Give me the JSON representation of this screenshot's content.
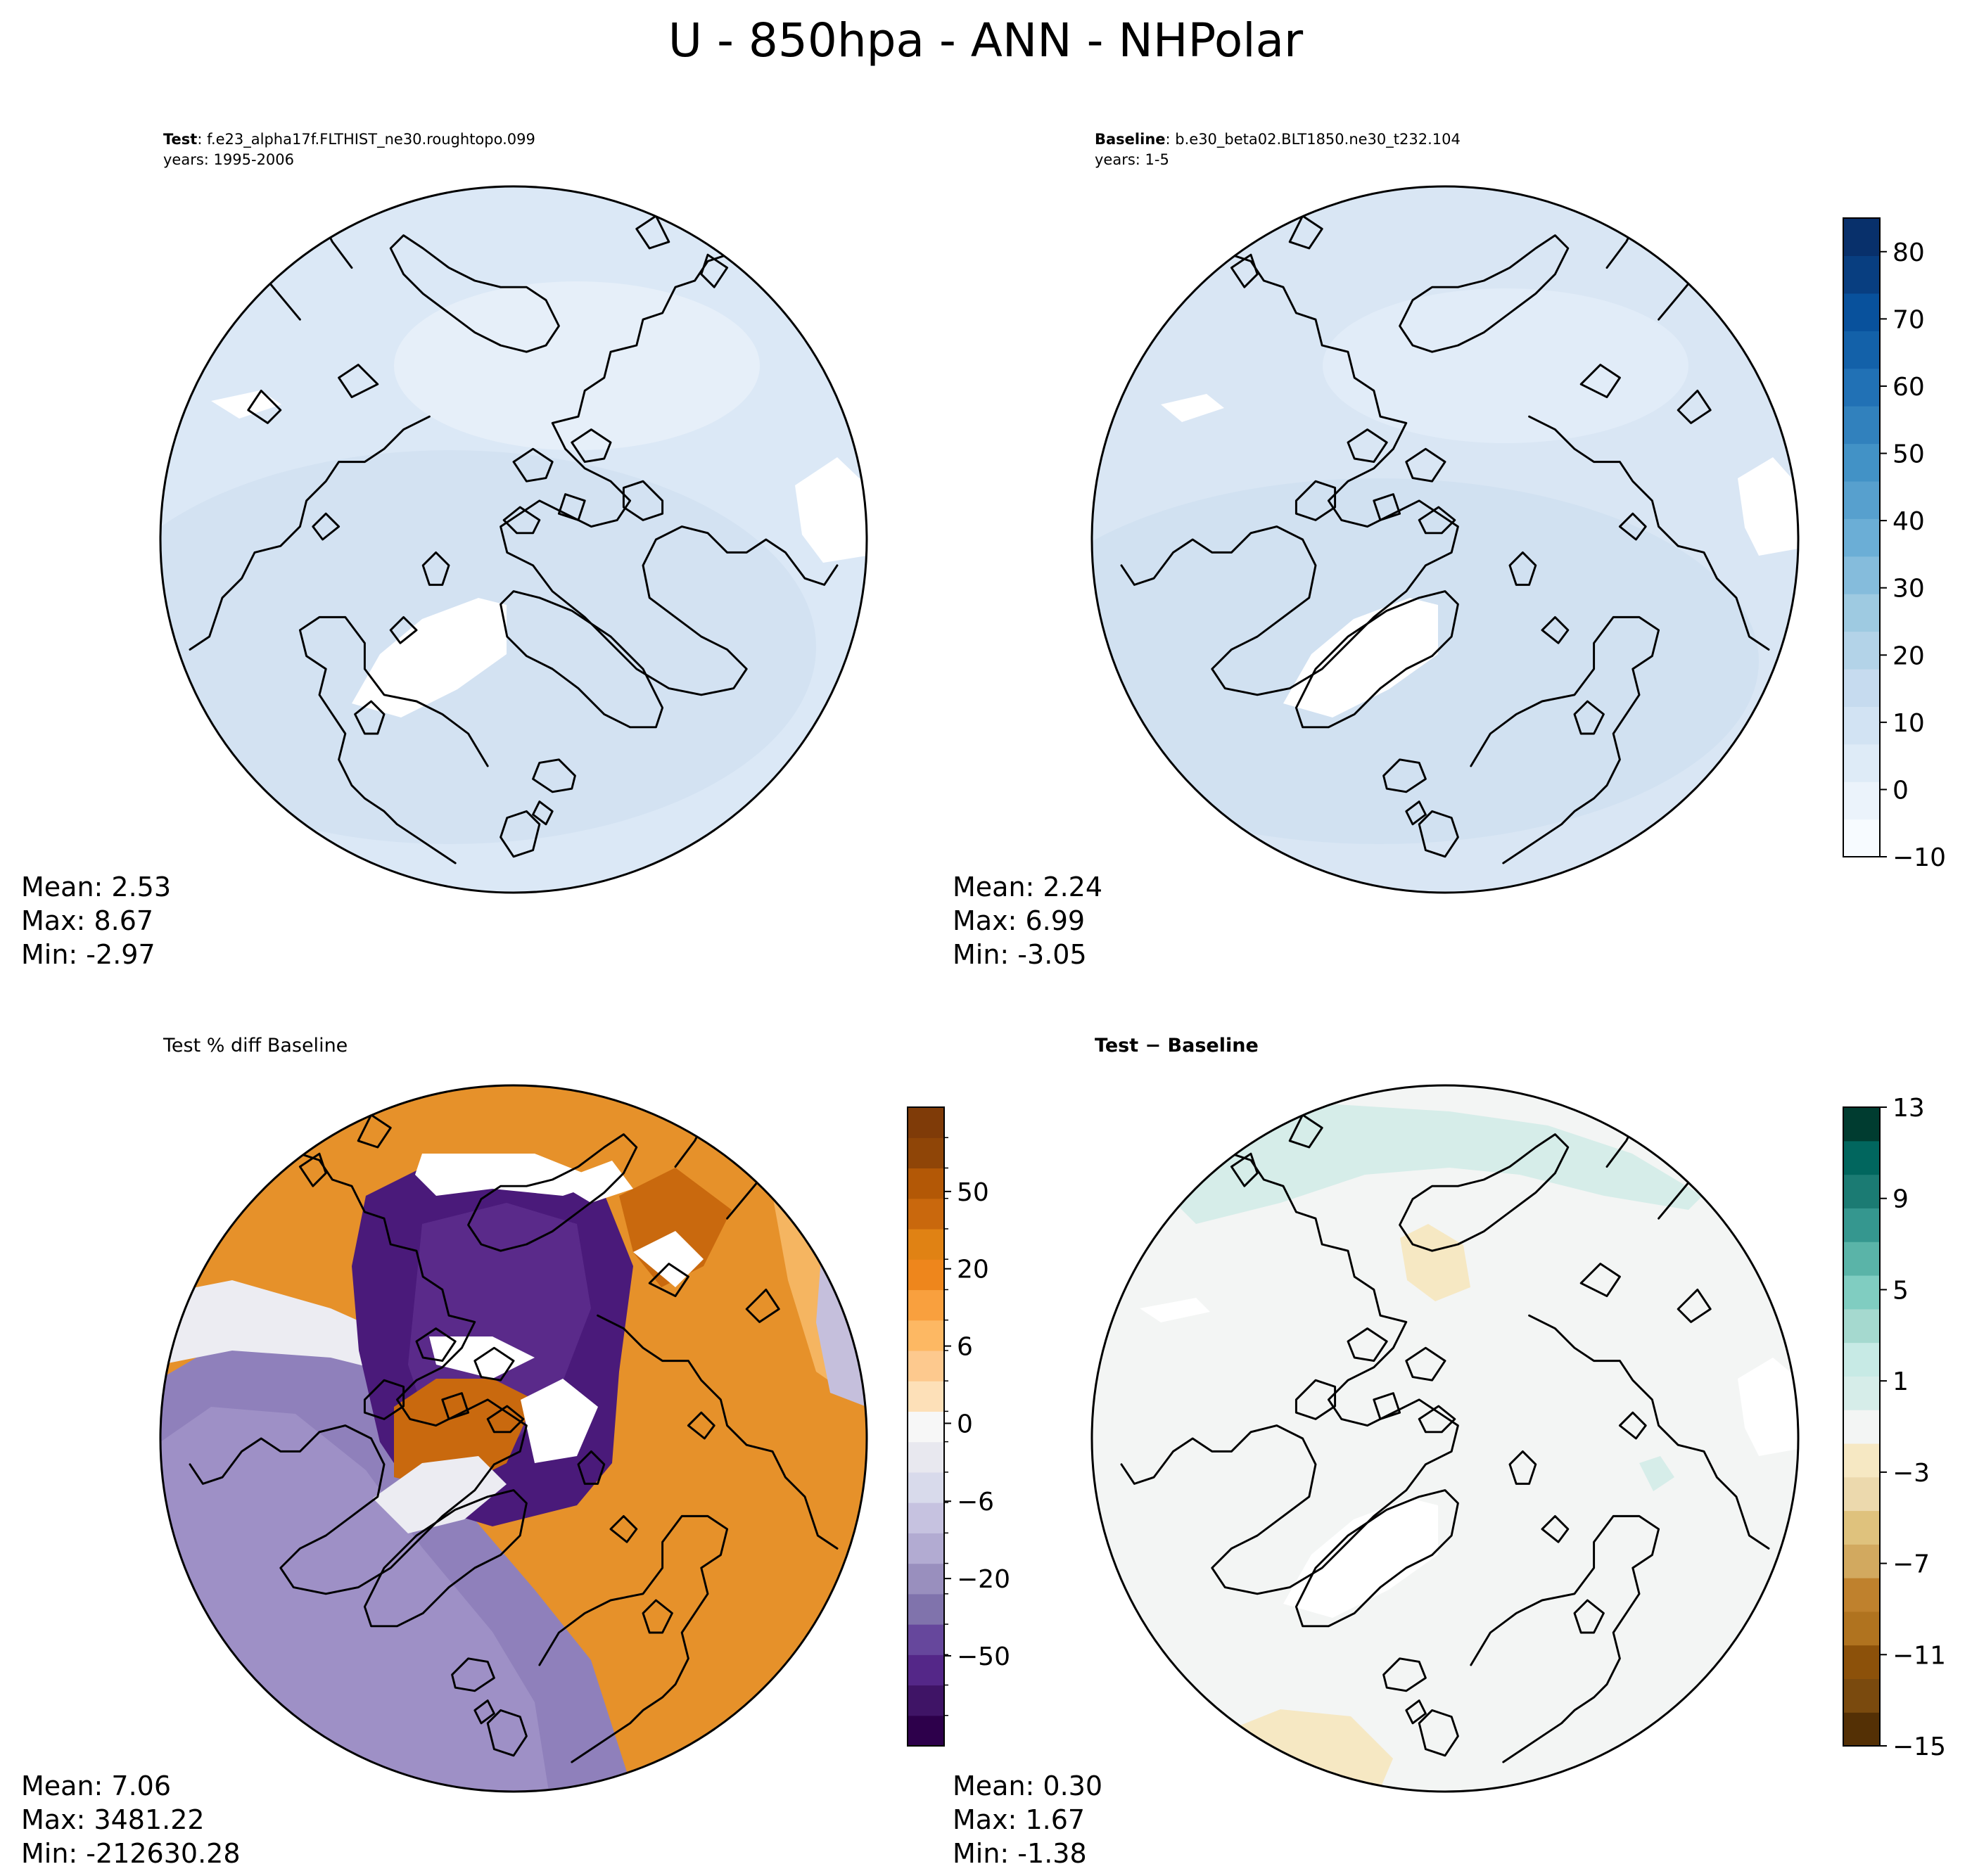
{
  "chart_data": [
    {
      "type": "heatmap",
      "figure_title": "U - 850hpa - ANN - NHPolar",
      "panel": "test",
      "title_bold": "Test",
      "title_rest": ": f.e23_alpha17f.FLTHIST_ne30.roughtopo.099",
      "years": "years: 1995-2006",
      "projection": "North polar stereographic",
      "stats": {
        "mean": "Mean:  2.53",
        "max": "Max:  8.67",
        "min": "Min: -2.97"
      },
      "colormap": "Blues",
      "colorbar_ticks": [
        "80",
        "70",
        "60",
        "50",
        "40",
        "30",
        "20",
        "10",
        "0",
        "−10"
      ],
      "colorbar_tick_values": [
        80,
        70,
        60,
        50,
        40,
        30,
        20,
        10,
        0,
        -10
      ],
      "colorbar_range": [
        -10,
        85
      ],
      "field_color": "#dbe8f6"
    },
    {
      "type": "heatmap",
      "panel": "baseline",
      "title_bold": "Baseline",
      "title_rest": ": b.e30_beta02.BLT1850.ne30_t232.104",
      "years": "years: 1-5",
      "projection": "North polar stereographic",
      "stats": {
        "mean": "Mean:  2.24",
        "max": "Max:  6.99",
        "min": "Min: -3.05"
      },
      "field_color": "#d9e6f4"
    },
    {
      "type": "heatmap",
      "panel": "pct_diff",
      "title": "Test % diff Baseline",
      "projection": "North polar stereographic",
      "stats": {
        "mean": "Mean:  7.06",
        "max": "Max: 3481.22",
        "min": "Min: -212630.28"
      },
      "colormap": "PuOr_r",
      "colorbar_ticks": [
        "50",
        "20",
        "6",
        "0",
        "−6",
        "−20",
        "−50"
      ],
      "colorbar_tick_values": [
        50,
        20,
        6,
        0,
        -6,
        -20,
        -50
      ]
    },
    {
      "type": "heatmap",
      "panel": "diff",
      "title": "Test − Baseline",
      "projection": "North polar stereographic",
      "stats": {
        "mean": "Mean:  0.30",
        "max": "Max:  1.67",
        "min": "Min: -1.38"
      },
      "colormap": "BrBG",
      "colorbar_ticks": [
        "13",
        "9",
        "5",
        "1",
        "−3",
        "−7",
        "−11",
        "−15"
      ],
      "colorbar_tick_values": [
        13,
        9,
        5,
        1,
        -3,
        -7,
        -11,
        -15
      ],
      "field_color": "#f3f5f4"
    }
  ],
  "colors": {
    "blues": [
      "#f7fbff",
      "#ebf3fb",
      "#deebf7",
      "#d2e3f3",
      "#c6dbef",
      "#b3d3e8",
      "#9ecae1",
      "#85bcdc",
      "#6baed6",
      "#57a0ce",
      "#4292c6",
      "#3181bd",
      "#2171b5",
      "#1361a9",
      "#08519c",
      "#083e80",
      "#08306b"
    ],
    "puor": [
      "#2d004b",
      "#3f1466",
      "#542788",
      "#66479c",
      "#8073ac",
      "#998fbe",
      "#b2abd2",
      "#c6c2e0",
      "#d8daeb",
      "#e8e8ef",
      "#f7f7f7",
      "#fde0b8",
      "#fdc98e",
      "#fdb863",
      "#f9a03e",
      "#ee861c",
      "#e08214",
      "#c9680d",
      "#b35806",
      "#8f4507",
      "#7f3b08"
    ],
    "brbg": [
      "#543005",
      "#7a4a0e",
      "#8c510a",
      "#b0731f",
      "#bf812d",
      "#d2a95f",
      "#dfc27d",
      "#ecd9ad",
      "#f6e8c3",
      "#f3f5f4",
      "#d6ede9",
      "#c7eae5",
      "#a5d9cf",
      "#80cdc1",
      "#5ab4a8",
      "#35978f",
      "#1b7b73",
      "#01665e",
      "#003c30"
    ],
    "pct_field": {
      "orange": "#e6912a",
      "orange_dark": "#c9690e",
      "orange_light": "#f5b561",
      "purple": "#8f80bb",
      "purple_dark": "#4a1a7a",
      "purple_light": "#c5bfdc",
      "neutral": "#ececf2"
    }
  }
}
